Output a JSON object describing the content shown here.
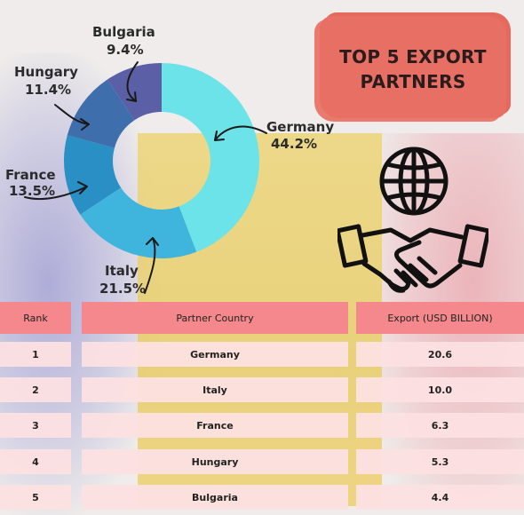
{
  "title": "TOP 5 EXPORT\nPARTNERS",
  "chart_data": {
    "type": "pie",
    "title": "TOP 5 EXPORT PARTNERS",
    "categories": [
      "Germany",
      "Italy",
      "France",
      "Hungary",
      "Bulgaria"
    ],
    "values": [
      44.2,
      21.5,
      13.5,
      11.4,
      9.4
    ],
    "labels": [
      "44.2%",
      "21.5%",
      "13.5%",
      "11.4%",
      "9.4%"
    ],
    "colors": [
      "#6be3e8",
      "#3fb4dd",
      "#2a8fc4",
      "#3e6fac",
      "#5b5fa6"
    ],
    "donut": true
  },
  "table": {
    "headers": [
      "Rank",
      "Partner Country",
      "Export (USD BILLION)"
    ],
    "rows": [
      [
        "1",
        "Germany",
        "20.6"
      ],
      [
        "2",
        "Italy",
        "10.0"
      ],
      [
        "3",
        "France",
        "6.3"
      ],
      [
        "4",
        "Hungary",
        "5.3"
      ],
      [
        "5",
        "Bulgaria",
        "4.4"
      ]
    ]
  },
  "icons": [
    "globe-icon",
    "handshake-icon"
  ]
}
